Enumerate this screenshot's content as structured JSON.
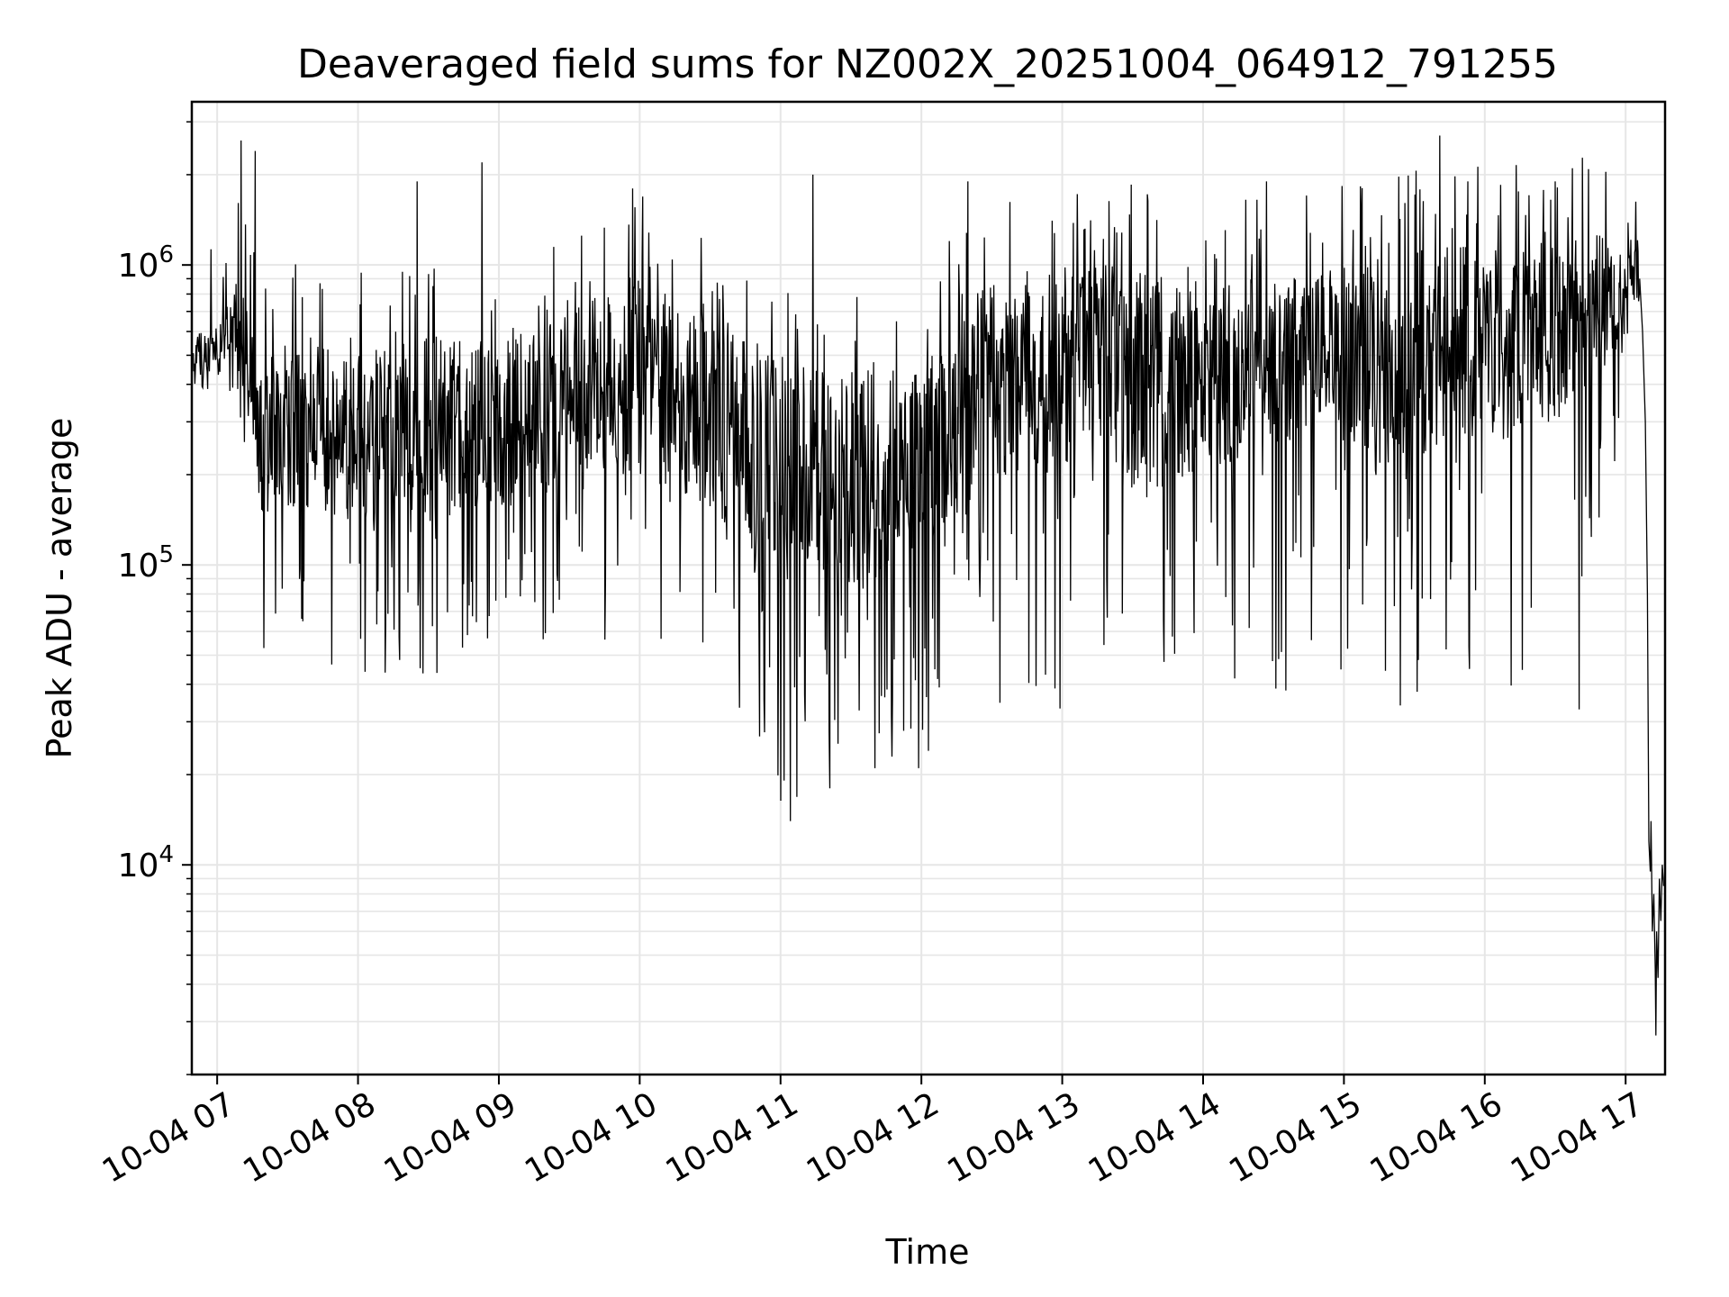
{
  "chart_data": {
    "type": "line",
    "title": "Deaveraged field sums for NZ002X_20251004_064912_791255",
    "xlabel": "Time",
    "ylabel": "Peak ADU - average",
    "yscale": "log",
    "ylim": [
      2000,
      3500000
    ],
    "xlim_hours": [
      6.82,
      17.28
    ],
    "x_ticks": [
      {
        "label": "10-04 07",
        "hour": 7
      },
      {
        "label": "10-04 08",
        "hour": 8
      },
      {
        "label": "10-04 09",
        "hour": 9
      },
      {
        "label": "10-04 10",
        "hour": 10
      },
      {
        "label": "10-04 11",
        "hour": 11
      },
      {
        "label": "10-04 12",
        "hour": 12
      },
      {
        "label": "10-04 13",
        "hour": 13
      },
      {
        "label": "10-04 14",
        "hour": 14
      },
      {
        "label": "10-04 15",
        "hour": 15
      },
      {
        "label": "10-04 16",
        "hour": 16
      },
      {
        "label": "10-04 17",
        "hour": 17
      }
    ],
    "y_ticks": [
      {
        "base": "10",
        "exp": "4",
        "value": 10000
      },
      {
        "base": "10",
        "exp": "5",
        "value": 100000
      },
      {
        "base": "10",
        "exp": "6",
        "value": 1000000
      }
    ],
    "grid": true,
    "line_color": "#000000",
    "grid_color": "#e6e6e6",
    "series": [
      {
        "name": "field sums",
        "envelope": {
          "hours": [
            6.83,
            7.0,
            7.15,
            7.3,
            7.6,
            8.0,
            8.5,
            9.0,
            9.5,
            10.0,
            10.5,
            11.0,
            11.3,
            11.6,
            12.0,
            12.3,
            12.6,
            13.0,
            13.5,
            14.0,
            14.5,
            15.0,
            15.5,
            16.0,
            16.5,
            17.0,
            17.1,
            17.15
          ],
          "typical_low": [
            400000,
            450000,
            500000,
            150000,
            150000,
            140000,
            150000,
            150000,
            200000,
            200000,
            150000,
            90000,
            80000,
            80000,
            110000,
            150000,
            200000,
            200000,
            180000,
            200000,
            250000,
            250000,
            230000,
            250000,
            300000,
            500000,
            800000,
            800000
          ],
          "typical_high": [
            600000,
            620000,
            900000,
            500000,
            550000,
            500000,
            600000,
            550000,
            700000,
            900000,
            700000,
            500000,
            450000,
            450000,
            450000,
            800000,
            900000,
            1000000,
            1000000,
            850000,
            900000,
            1000000,
            1100000,
            1200000,
            1200000,
            1300000,
            1200000,
            1100000
          ],
          "spike_min": [
            380000,
            380000,
            380000,
            45000,
            45000,
            42000,
            40000,
            45000,
            48000,
            40000,
            50000,
            14000,
            18000,
            21000,
            21000,
            38000,
            32000,
            33000,
            32000,
            35000,
            35000,
            38000,
            36000,
            40000,
            35000,
            300000,
            800000,
            800000
          ]
        },
        "peaks": [
          {
            "hour": 7.17,
            "value": 2600000
          },
          {
            "hour": 7.27,
            "value": 2400000
          },
          {
            "hour": 8.42,
            "value": 1900000
          },
          {
            "hour": 8.88,
            "value": 2200000
          },
          {
            "hour": 9.95,
            "value": 1800000
          },
          {
            "hour": 11.23,
            "value": 2000000
          },
          {
            "hour": 12.33,
            "value": 1900000
          },
          {
            "hour": 14.45,
            "value": 1900000
          },
          {
            "hour": 15.68,
            "value": 2700000
          },
          {
            "hour": 15.88,
            "value": 1900000
          },
          {
            "hour": 16.5,
            "value": 1900000
          }
        ],
        "troughs": [
          {
            "hour": 8.05,
            "value": 44000
          },
          {
            "hour": 11.07,
            "value": 14000
          },
          {
            "hour": 11.35,
            "value": 18000
          },
          {
            "hour": 11.67,
            "value": 21000
          },
          {
            "hour": 11.98,
            "value": 21000
          },
          {
            "hour": 12.05,
            "value": 24000
          },
          {
            "hour": 15.4,
            "value": 34000
          },
          {
            "hour": 16.67,
            "value": 33000
          }
        ],
        "tail": [
          {
            "hour": 17.1,
            "value": 900000
          },
          {
            "hour": 17.12,
            "value": 600000
          },
          {
            "hour": 17.14,
            "value": 300000
          },
          {
            "hour": 17.155,
            "value": 80000
          },
          {
            "hour": 17.165,
            "value": 12000
          },
          {
            "hour": 17.175,
            "value": 9500
          },
          {
            "hour": 17.18,
            "value": 14000
          },
          {
            "hour": 17.19,
            "value": 6000
          },
          {
            "hour": 17.2,
            "value": 8000
          },
          {
            "hour": 17.21,
            "value": 4500
          },
          {
            "hour": 17.215,
            "value": 2700
          },
          {
            "hour": 17.22,
            "value": 6000
          },
          {
            "hour": 17.23,
            "value": 4200
          },
          {
            "hour": 17.24,
            "value": 9000
          },
          {
            "hour": 17.25,
            "value": 6500
          },
          {
            "hour": 17.26,
            "value": 10000
          },
          {
            "hour": 17.27,
            "value": 8500
          }
        ]
      }
    ]
  }
}
